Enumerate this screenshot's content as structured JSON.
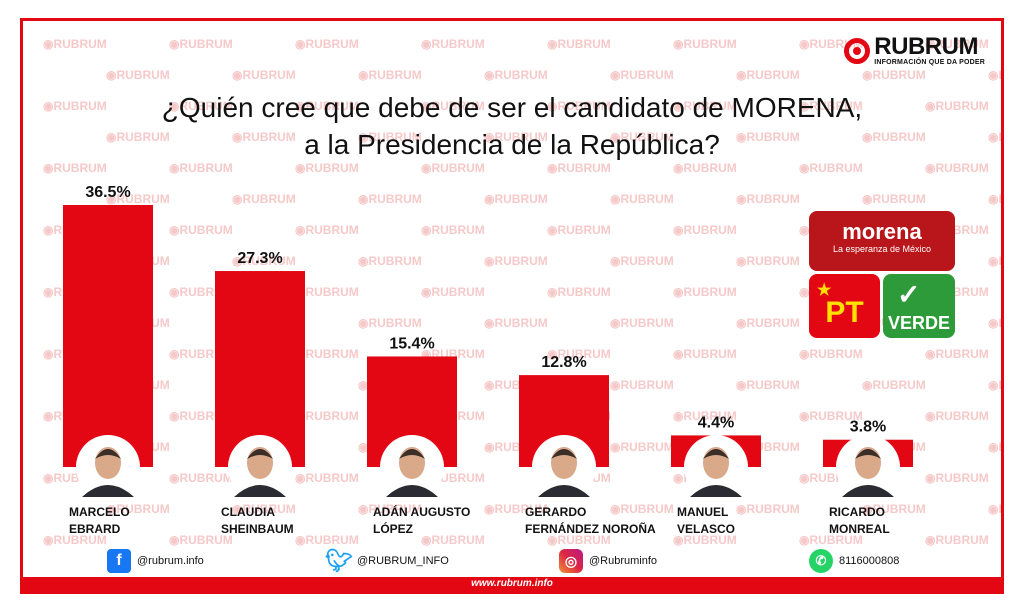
{
  "brand": {
    "name": "RUBRUM",
    "tagline": "INFORMACIÓN QUE DA PODER",
    "watermark_text": "RUBRUM"
  },
  "title_lines": [
    "¿Quién cree que debe de ser el candidato de MORENA,",
    "a la Presidencia de la República?"
  ],
  "party_logos": {
    "morena": {
      "name": "morena",
      "slogan": "La esperanza de México"
    },
    "pt": {
      "name": "PT"
    },
    "verde": {
      "name": "VERDE"
    }
  },
  "social": {
    "facebook": "@rubrum.info",
    "twitter": "@RUBRUM_INFO",
    "instagram": "@Rubruminfo",
    "whatsapp": "8116000808"
  },
  "footer": {
    "url": "www.rubrum.info"
  },
  "colors": {
    "bar": "#e30613",
    "frame": "#e30613",
    "watermark": "#f6c9c9"
  },
  "chart_data": {
    "type": "bar",
    "categories": [
      [
        "MARCELO",
        "EBRARD"
      ],
      [
        "CLAUDIA",
        "SHEINBAUM"
      ],
      [
        "ADÁN AUGUSTO",
        "LÓPEZ"
      ],
      [
        "GERARDO",
        "FERNÁNDEZ NOROÑA"
      ],
      [
        "MANUEL",
        "VELASCO"
      ],
      [
        "RICARDO",
        "MONREAL"
      ]
    ],
    "values": [
      36.5,
      27.3,
      15.4,
      12.8,
      4.4,
      3.8
    ],
    "value_labels": [
      "36.5%",
      "27.3%",
      "15.4%",
      "12.8%",
      "4.4%",
      "3.8%"
    ],
    "unit": "%",
    "title": "¿Quién cree que debe de ser el candidato de MORENA, a la Presidencia de la República?",
    "grid": false,
    "legend": "none"
  }
}
